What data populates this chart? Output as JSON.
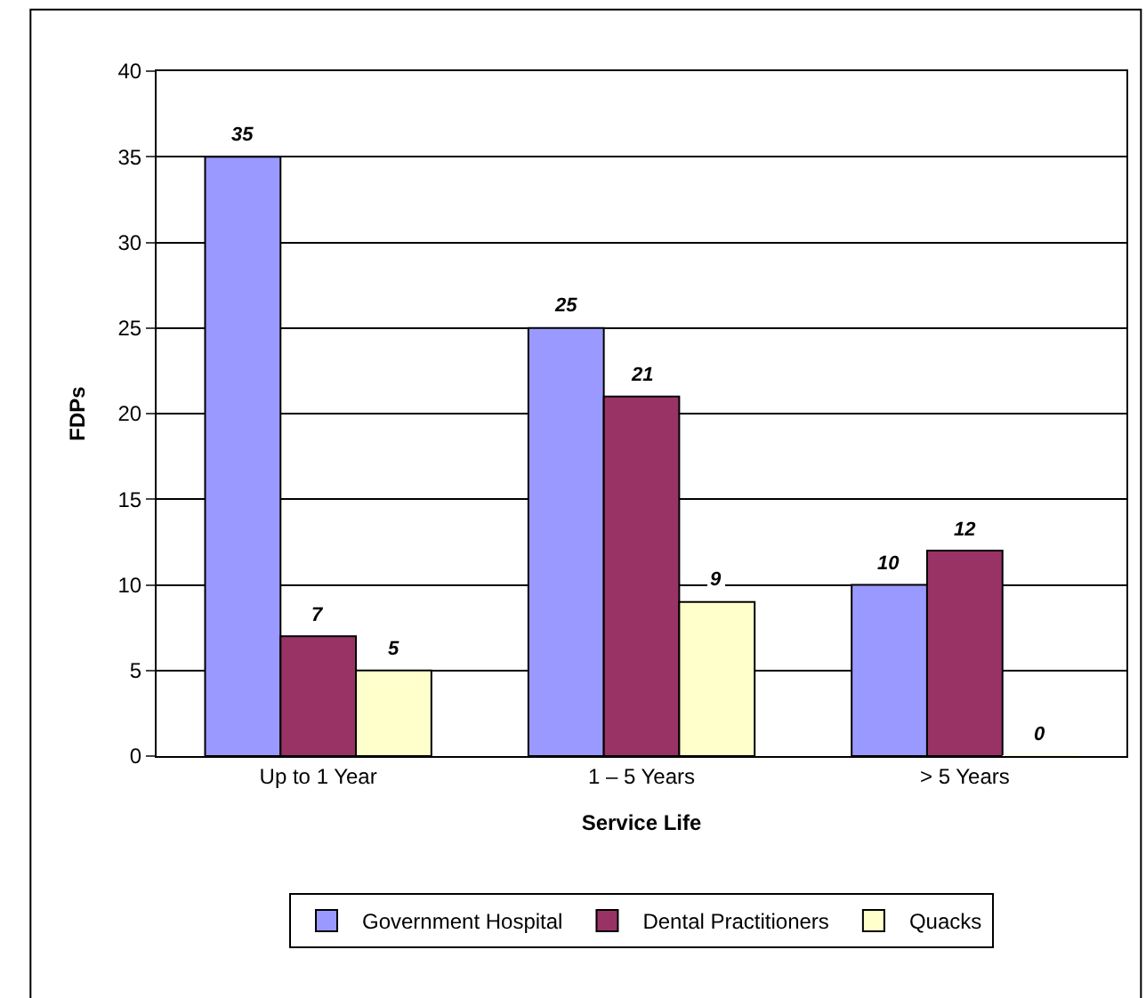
{
  "chart_data": {
    "type": "bar",
    "xlabel": "Service Life",
    "ylabel": "FDPs",
    "categories": [
      "Up to 1 Year",
      "1 – 5 Years",
      "> 5 Years"
    ],
    "series": [
      {
        "name": "Government Hospital",
        "color": "#9999ff",
        "values": [
          35,
          25,
          10
        ]
      },
      {
        "name": "Dental Practitioners",
        "color": "#993366",
        "values": [
          7,
          21,
          12
        ]
      },
      {
        "name": "Quacks",
        "color": "#ffffcc",
        "values": [
          5,
          9,
          0
        ]
      }
    ],
    "ylim": [
      0,
      40
    ],
    "yticks": [
      0,
      5,
      10,
      15,
      20,
      25,
      30,
      35,
      40
    ],
    "grid": "y",
    "legend": "bottom",
    "data_labels": true
  }
}
